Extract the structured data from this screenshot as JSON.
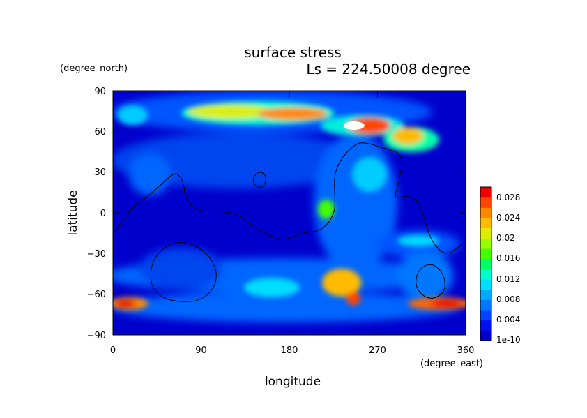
{
  "chart_data": {
    "type": "heatmap",
    "title": "surface stress",
    "subtitle": "Ls = 224.50008 degree",
    "xlabel": "longitude",
    "ylabel": "latitude",
    "x_unit": "(degree_east)",
    "y_unit": "(degree_north)",
    "xlim": [
      0,
      360
    ],
    "ylim": [
      -90,
      90
    ],
    "x_ticks": [
      "0",
      "90",
      "180",
      "270",
      "360"
    ],
    "y_ticks": [
      "90",
      "60",
      "30",
      "0",
      "−30",
      "−60",
      "−90"
    ],
    "colorbar": {
      "labels": [
        "0.028",
        "0.024",
        "0.02",
        "0.016",
        "0.012",
        "0.008",
        "0.004",
        "1e-10"
      ],
      "range": [
        0,
        0.03
      ],
      "colors": [
        "#0000cc",
        "#0011ee",
        "#0044ff",
        "#0077ff",
        "#00aaff",
        "#00ddff",
        "#00ffcc",
        "#00ff66",
        "#44ff00",
        "#99ff00",
        "#ddee00",
        "#ffbb00",
        "#ff8800",
        "#ff4400",
        "#ee0000"
      ]
    },
    "features": [
      {
        "lon": 40,
        "lat": 68,
        "value": 0.006
      },
      {
        "lon": 90,
        "lat": 72,
        "value": 0.018
      },
      {
        "lon": 170,
        "lat": 68,
        "value": 0.024
      },
      {
        "lon": 245,
        "lat": 65,
        "value": 0.03
      },
      {
        "lon": 295,
        "lat": 55,
        "value": 0.02
      },
      {
        "lon": 215,
        "lat": 5,
        "value": 0.016
      },
      {
        "lon": 240,
        "lat": -50,
        "value": 0.022
      },
      {
        "lon": 250,
        "lat": -62,
        "value": 0.026
      },
      {
        "lon": 5,
        "lat": -64,
        "value": 0.026
      },
      {
        "lon": 340,
        "lat": -64,
        "value": 0.028
      }
    ]
  }
}
